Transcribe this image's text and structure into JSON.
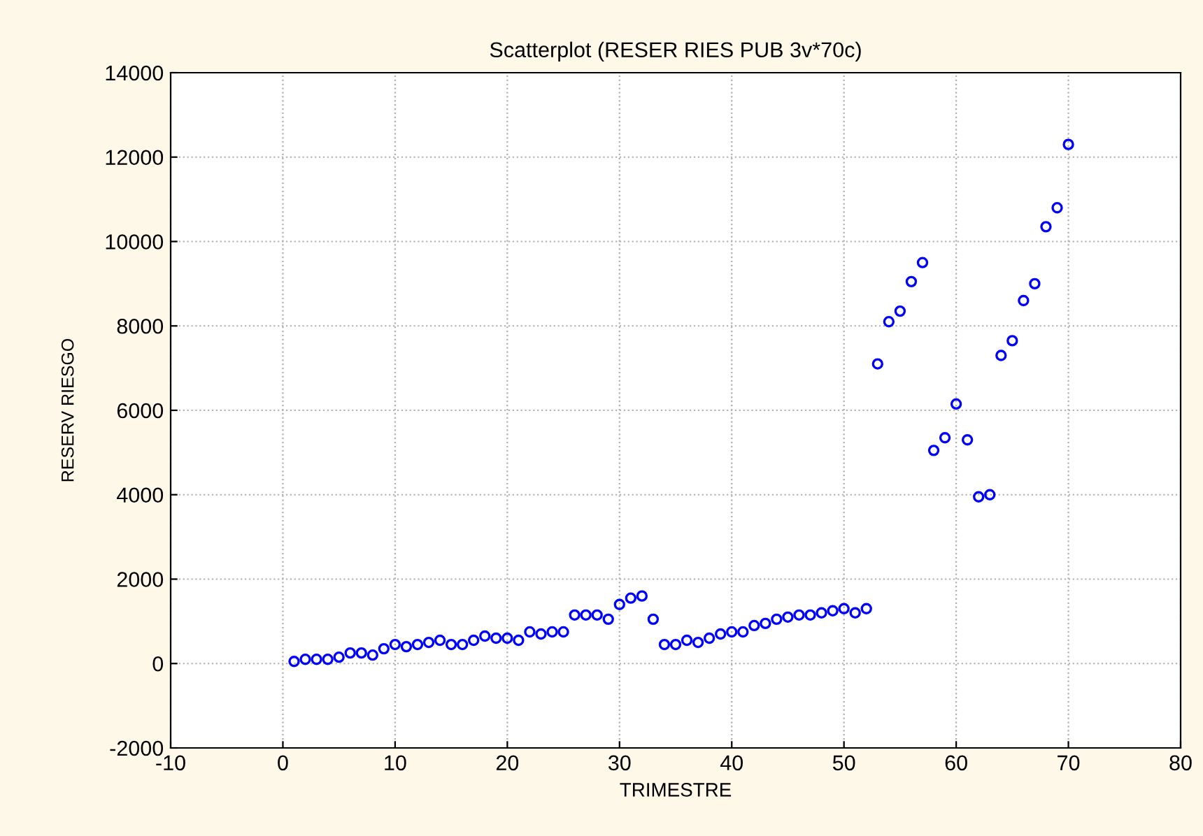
{
  "chart_data": {
    "type": "scatter",
    "title": "Scatterplot (RESER RIES PUB 3v*70c)",
    "xlabel": "TRIMESTRE",
    "ylabel": "RESERV RIESGO",
    "x": [
      1,
      2,
      3,
      4,
      5,
      6,
      7,
      8,
      9,
      10,
      11,
      12,
      13,
      14,
      15,
      16,
      17,
      18,
      19,
      20,
      21,
      22,
      23,
      24,
      25,
      26,
      27,
      28,
      29,
      30,
      31,
      32,
      33,
      34,
      35,
      36,
      37,
      38,
      39,
      40,
      41,
      42,
      43,
      44,
      45,
      46,
      47,
      48,
      49,
      50,
      51,
      52,
      53,
      54,
      55,
      56,
      57,
      58,
      59,
      60,
      61,
      62,
      63,
      64,
      65,
      66,
      67,
      68,
      69,
      70
    ],
    "series": [
      {
        "color": "#0000ff",
        "values": [
          50,
          100,
          100,
          100,
          150,
          250,
          250,
          200,
          350,
          450,
          400,
          450,
          500,
          550,
          450,
          450,
          550,
          650,
          600,
          600,
          550,
          750,
          700,
          750,
          750,
          1150,
          1150,
          1150,
          1050,
          1400,
          1550,
          1600,
          1050,
          450,
          450,
          550,
          500,
          600,
          700,
          750,
          750,
          900,
          950,
          1050,
          1100,
          1150,
          1150,
          1200,
          1250,
          1300,
          1200,
          1300,
          7100,
          8100,
          8350,
          9050,
          9500,
          5050,
          5350,
          6150,
          5300,
          3950,
          4000,
          7300,
          7650,
          8600,
          9000,
          10350,
          10800,
          12300
        ]
      }
    ],
    "xlim": [
      -10,
      80
    ],
    "xticks": [
      -10,
      0,
      10,
      20,
      30,
      40,
      50,
      60,
      70,
      80
    ],
    "ylim": [
      -2000,
      14000
    ],
    "yticks": [
      -2000,
      0,
      2000,
      4000,
      6000,
      8000,
      10000,
      12000,
      14000
    ],
    "grid": true,
    "marker": "circle",
    "legend": false
  }
}
